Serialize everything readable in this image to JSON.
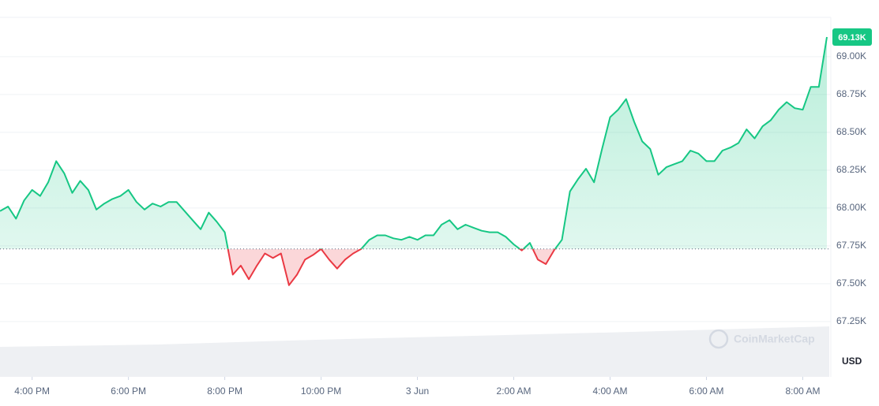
{
  "chart_data": {
    "type": "line",
    "values": [
      67980,
      68010,
      67930,
      68050,
      68120,
      68080,
      68170,
      68310,
      68230,
      68100,
      68180,
      68120,
      67990,
      68030,
      68060,
      68080,
      68120,
      68040,
      67990,
      68030,
      68010,
      68040,
      68040,
      67980,
      67920,
      67860,
      67970,
      67910,
      67840,
      67560,
      67620,
      67530,
      67620,
      67700,
      67670,
      67700,
      67490,
      67560,
      67660,
      67690,
      67730,
      67660,
      67600,
      67660,
      67700,
      67730,
      67790,
      67820,
      67820,
      67800,
      67790,
      67810,
      67790,
      67820,
      67820,
      67890,
      67920,
      67860,
      67890,
      67870,
      67850,
      67840,
      67840,
      67810,
      67760,
      67720,
      67770,
      67660,
      67630,
      67720,
      67790,
      68110,
      68190,
      68260,
      68170,
      68390,
      68600,
      68650,
      68720,
      68570,
      68440,
      68390,
      68220,
      68270,
      68290,
      68310,
      68380,
      68360,
      68310,
      68310,
      68380,
      68400,
      68430,
      68520,
      68460,
      68540,
      68580,
      68650,
      68700,
      68660,
      68650,
      68800,
      68800,
      69130
    ],
    "baseline": 67730,
    "up_color": "#16c784",
    "down_color": "#ea3943",
    "current_price": {
      "value": 69130,
      "label": "69.13K"
    },
    "xlim": [
      0,
      103.3
    ],
    "xticks": [
      {
        "value": 4,
        "label": "4:00 PM"
      },
      {
        "value": 16,
        "label": "6:00 PM"
      },
      {
        "value": 28,
        "label": "8:00 PM"
      },
      {
        "value": 40,
        "label": "10:00 PM"
      },
      {
        "value": 52,
        "label": "3 Jun"
      },
      {
        "value": 64,
        "label": "2:00 AM"
      },
      {
        "value": 76,
        "label": "4:00 AM"
      },
      {
        "value": 88,
        "label": "6:00 AM"
      },
      {
        "value": 100,
        "label": "8:00 AM"
      }
    ],
    "ylim": [
      66885,
      69260
    ],
    "yticks": [
      {
        "value": 67250,
        "label": "67.25K"
      },
      {
        "value": 67500,
        "label": "67.50K"
      },
      {
        "value": 67750,
        "label": "67.75K"
      },
      {
        "value": 68000,
        "label": "68.00K"
      },
      {
        "value": 68250,
        "label": "68.25K"
      },
      {
        "value": 68500,
        "label": "68.50K"
      },
      {
        "value": 68750,
        "label": "68.75K"
      },
      {
        "value": 69000,
        "label": "69.00K"
      }
    ],
    "grid": true,
    "currency": "USD",
    "watermark": "CoinMarketCap"
  }
}
